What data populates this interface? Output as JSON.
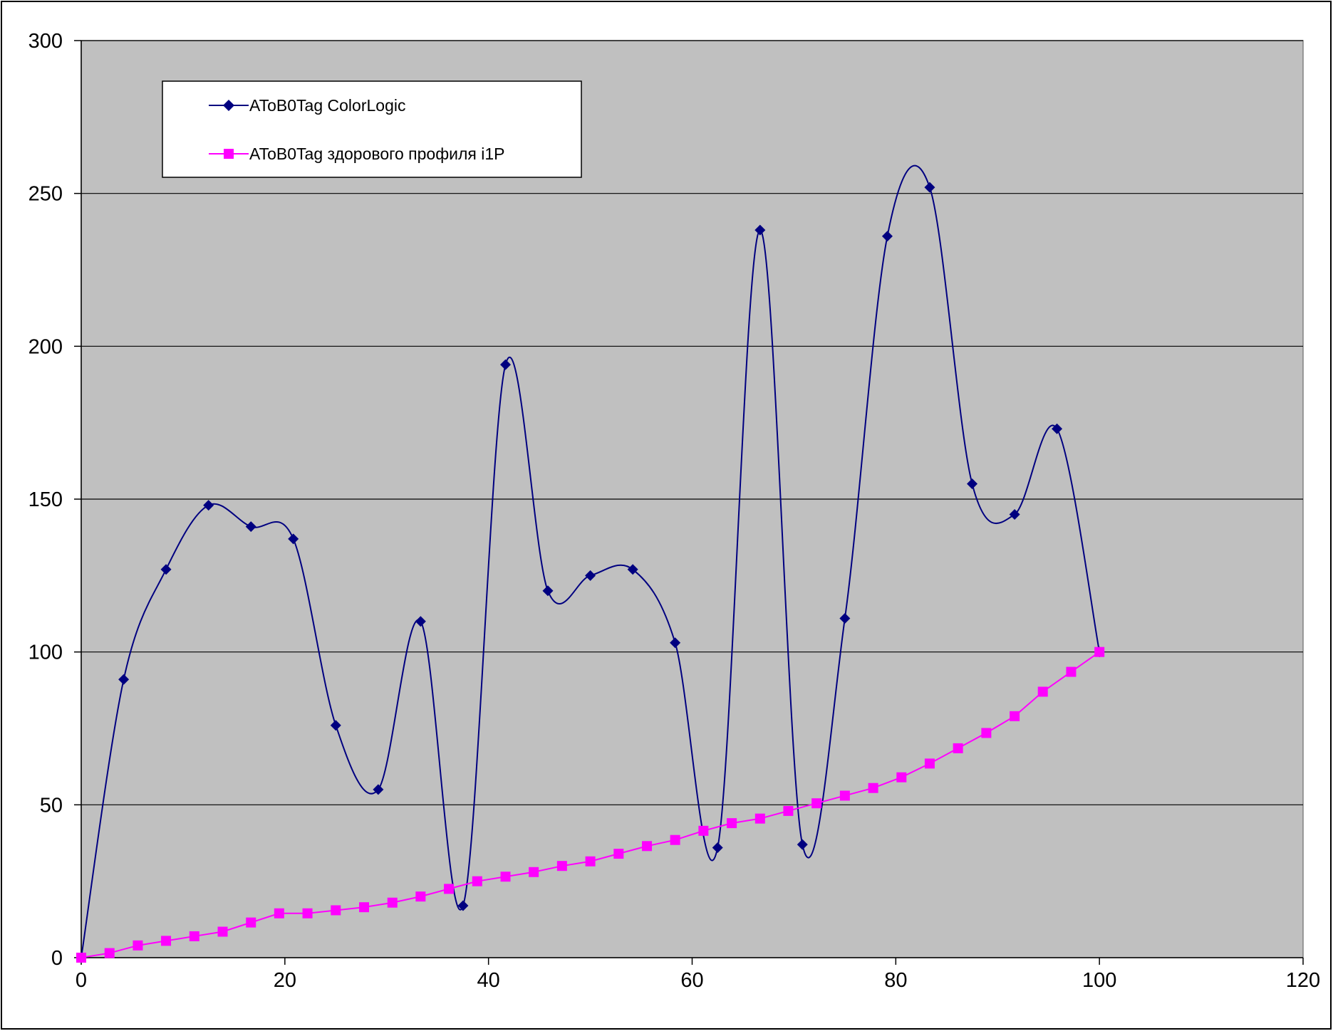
{
  "chart_data": {
    "type": "scatter",
    "title": "",
    "xlabel": "",
    "ylabel": "",
    "xlim": [
      0,
      120
    ],
    "ylim": [
      0,
      300
    ],
    "x_ticks": [
      0,
      20,
      40,
      60,
      80,
      100,
      120
    ],
    "y_ticks": [
      0,
      50,
      100,
      150,
      200,
      250,
      300
    ],
    "x_tick_labels": [
      "0",
      "20",
      "40",
      "60",
      "80",
      "100",
      "120"
    ],
    "y_tick_labels": [
      "0",
      "50",
      "100",
      "150",
      "200",
      "250",
      "300"
    ],
    "grid": "horizontal",
    "plot_background": "#c0c0c0",
    "legend_position": "top-left",
    "series": [
      {
        "name": "AToB0Tag ColorLogic",
        "color": "#000080",
        "marker": "diamond",
        "smooth": true,
        "x": [
          0,
          4.17,
          8.33,
          12.5,
          16.67,
          20.83,
          25,
          29.17,
          33.33,
          37.5,
          41.67,
          45.83,
          50,
          54.17,
          58.33,
          62.5,
          66.67,
          70.83,
          75,
          79.17,
          83.33,
          87.5,
          91.67,
          95.83,
          100
        ],
        "y": [
          0,
          91,
          127,
          148,
          141,
          137,
          76,
          55,
          110,
          17,
          194,
          120,
          125,
          127,
          103,
          36,
          238,
          37,
          111,
          236,
          252,
          155,
          145,
          173,
          100
        ]
      },
      {
        "name": "AToB0Tag здорового профиля i1P",
        "color": "#ff00ff",
        "marker": "square",
        "smooth": false,
        "x": [
          0,
          2.78,
          5.56,
          8.33,
          11.11,
          13.89,
          16.67,
          19.44,
          22.22,
          25,
          27.78,
          30.56,
          33.33,
          36.11,
          38.89,
          41.67,
          44.44,
          47.22,
          50,
          52.78,
          55.56,
          58.33,
          61.11,
          63.89,
          66.67,
          69.44,
          72.22,
          75,
          77.78,
          80.56,
          83.33,
          86.11,
          88.89,
          91.67,
          94.44,
          97.22,
          100
        ],
        "y": [
          0,
          1.5,
          4,
          5.5,
          7,
          8.5,
          11.5,
          14.5,
          14.5,
          15.5,
          16.5,
          18,
          20,
          22.5,
          25,
          26.5,
          28,
          30,
          31.5,
          34,
          36.5,
          38.5,
          41.5,
          44,
          45.5,
          48,
          50.5,
          53,
          55.5,
          59,
          63.5,
          68.5,
          73.5,
          79,
          87,
          93.5,
          100
        ]
      }
    ]
  }
}
